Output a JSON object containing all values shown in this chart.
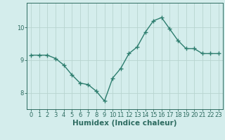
{
  "x": [
    0,
    1,
    2,
    3,
    4,
    5,
    6,
    7,
    8,
    9,
    10,
    11,
    12,
    13,
    14,
    15,
    16,
    17,
    18,
    19,
    20,
    21,
    22,
    23
  ],
  "y": [
    9.15,
    9.15,
    9.15,
    9.05,
    8.85,
    8.55,
    8.3,
    8.25,
    8.05,
    7.75,
    8.45,
    8.75,
    9.2,
    9.4,
    9.85,
    10.2,
    10.3,
    9.95,
    9.6,
    9.35,
    9.35,
    9.2,
    9.2,
    9.2
  ],
  "line_color": "#2d7d6e",
  "marker": "+",
  "marker_size": 4,
  "bg_color": "#d4edec",
  "grid_color": "#b8d4d0",
  "axis_color": "#2d6b60",
  "xlabel": "Humidex (Indice chaleur)",
  "ylim": [
    7.5,
    10.75
  ],
  "yticks": [
    8,
    9,
    10
  ],
  "xticks": [
    0,
    1,
    2,
    3,
    4,
    5,
    6,
    7,
    8,
    9,
    10,
    11,
    12,
    13,
    14,
    15,
    16,
    17,
    18,
    19,
    20,
    21,
    22,
    23
  ],
  "tick_fontsize": 6,
  "xlabel_fontsize": 7.5,
  "line_width": 1.0
}
